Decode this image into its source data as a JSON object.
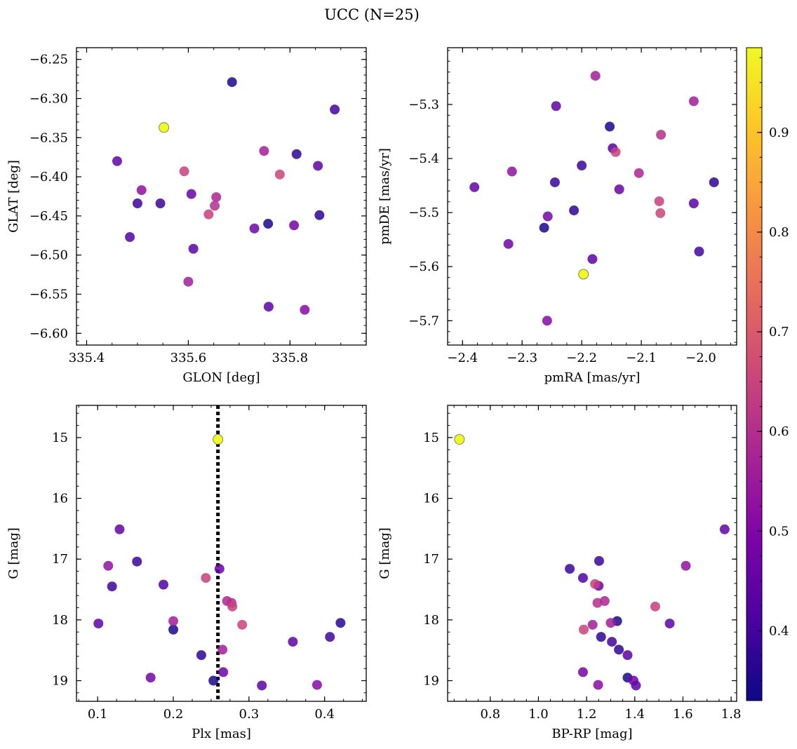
{
  "chart_data": {
    "title": "UCC (N=25)",
    "colorbar": {
      "range": [
        0.33,
        0.985
      ],
      "ticks": [
        "0.4",
        "0.5",
        "0.6",
        "0.7",
        "0.8",
        "0.9"
      ],
      "tick_values": [
        0.4,
        0.5,
        0.6,
        0.7,
        0.8,
        0.9
      ],
      "colormap": "plasma"
    },
    "panels": [
      {
        "type": "scatter",
        "xlabel": "GLON [deg]",
        "ylabel": "GLAT [deg]",
        "xlim": [
          335.38,
          335.95
        ],
        "ylim": [
          -6.615,
          -6.235
        ],
        "xticks": [
          335.4,
          335.6,
          335.8
        ],
        "xtick_labels": [
          "335.4",
          "335.6",
          "335.8"
        ],
        "yticks": [
          -6.6,
          -6.55,
          -6.5,
          -6.45,
          -6.4,
          -6.35,
          -6.3,
          -6.25
        ],
        "ytick_labels": [
          "−6.60",
          "−6.55",
          "−6.50",
          "−6.45",
          "−6.40",
          "−6.35",
          "−6.30",
          "−6.25"
        ],
        "y_inverted": false,
        "vline": null,
        "x": [
          335.552,
          335.46,
          335.508,
          335.5,
          335.545,
          335.485,
          335.592,
          335.606,
          335.655,
          335.652,
          335.64,
          335.61,
          335.6,
          335.686,
          335.749,
          335.78,
          335.813,
          335.855,
          335.888,
          335.858,
          335.808,
          335.757,
          335.73,
          335.758,
          335.829
        ],
        "y": [
          -6.337,
          -6.38,
          -6.417,
          -6.434,
          -6.434,
          -6.477,
          -6.393,
          -6.422,
          -6.426,
          -6.437,
          -6.448,
          -6.492,
          -6.534,
          -6.279,
          -6.367,
          -6.397,
          -6.371,
          -6.386,
          -6.314,
          -6.449,
          -6.462,
          -6.46,
          -6.466,
          -6.566,
          -6.57
        ]
      },
      {
        "type": "scatter",
        "xlabel": "pmRA [mas/yr]",
        "ylabel": "pmDE [mas/yr]",
        "xlim": [
          -2.425,
          -1.94
        ],
        "ylim": [
          -5.745,
          -5.195
        ],
        "xticks": [
          -2.4,
          -2.3,
          -2.2,
          -2.1,
          -2.0
        ],
        "xtick_labels": [
          "−2.4",
          "−2.3",
          "−2.2",
          "−2.1",
          "−2.0"
        ],
        "yticks": [
          -5.7,
          -5.6,
          -5.5,
          -5.4,
          -5.3
        ],
        "ytick_labels": [
          "−5.7",
          "−5.6",
          "−5.5",
          "−5.4",
          "−5.3"
        ],
        "y_inverted": false,
        "vline": null,
        "x": [
          -2.197,
          -2.38,
          -2.317,
          -2.245,
          -2.2,
          -2.148,
          -2.143,
          -2.137,
          -2.104,
          -2.067,
          -2.07,
          -2.243,
          -2.177,
          -2.153,
          -2.012,
          -2.068,
          -1.978,
          -2.012,
          -2.003,
          -2.213,
          -2.257,
          -2.263,
          -2.323,
          -2.182,
          -2.258
        ],
        "y": [
          -5.614,
          -5.453,
          -5.424,
          -5.444,
          -5.413,
          -5.381,
          -5.388,
          -5.457,
          -5.427,
          -5.356,
          -5.479,
          -5.303,
          -5.247,
          -5.341,
          -5.294,
          -5.501,
          -5.444,
          -5.483,
          -5.572,
          -5.496,
          -5.507,
          -5.528,
          -5.558,
          -5.586,
          -5.7
        ]
      },
      {
        "type": "scatter",
        "xlabel": "Plx [mas]",
        "ylabel": "G [mag]",
        "xlim": [
          0.072,
          0.455
        ],
        "ylim": [
          19.34,
          14.47
        ],
        "xticks": [
          0.1,
          0.2,
          0.3,
          0.4
        ],
        "xtick_labels": [
          "0.1",
          "0.2",
          "0.3",
          "0.4"
        ],
        "yticks": [
          15,
          16,
          17,
          18,
          19
        ],
        "ytick_labels": [
          "15",
          "16",
          "17",
          "18",
          "19"
        ],
        "y_inverted": true,
        "vline": 0.259,
        "x": [
          0.259,
          0.129,
          0.114,
          0.119,
          0.152,
          0.187,
          0.243,
          0.261,
          0.271,
          0.277,
          0.278,
          0.101,
          0.2,
          0.2,
          0.265,
          0.291,
          0.237,
          0.358,
          0.407,
          0.421,
          0.17,
          0.253,
          0.266,
          0.317,
          0.39
        ],
        "y": [
          15.03,
          16.51,
          17.11,
          17.45,
          17.04,
          17.42,
          17.31,
          17.16,
          17.69,
          17.72,
          17.78,
          18.06,
          18.02,
          18.16,
          18.49,
          18.08,
          18.58,
          18.36,
          18.28,
          18.05,
          18.95,
          19.0,
          18.86,
          19.08,
          19.07
        ]
      },
      {
        "type": "scatter",
        "xlabel": "BP-RP [mag]",
        "ylabel": "G [mag]",
        "xlim": [
          0.623,
          1.823
        ],
        "ylim": [
          19.34,
          14.47
        ],
        "xticks": [
          0.8,
          1.0,
          1.2,
          1.4,
          1.6,
          1.8
        ],
        "xtick_labels": [
          "0.8",
          "1.0",
          "1.2",
          "1.4",
          "1.6",
          "1.8"
        ],
        "yticks": [
          15,
          16,
          17,
          18,
          19
        ],
        "ytick_labels": [
          "15",
          "16",
          "17",
          "18",
          "19"
        ],
        "y_inverted": true,
        "vline": null,
        "x": [
          0.672,
          1.773,
          1.612,
          1.13,
          1.252,
          1.185,
          1.235,
          1.25,
          1.275,
          1.245,
          1.485,
          1.545,
          1.3,
          1.327,
          1.225,
          1.188,
          1.334,
          1.37,
          1.305,
          1.26,
          1.185,
          1.37,
          1.395,
          1.405,
          1.248
        ],
        "y": [
          15.03,
          16.51,
          17.11,
          17.16,
          17.03,
          17.31,
          17.41,
          17.44,
          17.69,
          17.72,
          17.78,
          18.06,
          18.05,
          18.02,
          18.08,
          18.16,
          18.49,
          18.58,
          18.36,
          18.28,
          18.86,
          18.95,
          19.0,
          19.08,
          19.07
        ]
      }
    ],
    "point_colors": [
      0.985,
      0.45,
      0.53,
      0.39,
      0.39,
      0.42,
      0.64,
      0.46,
      0.58,
      0.6,
      0.64,
      0.44,
      0.56,
      0.35,
      0.56,
      0.65,
      0.37,
      0.44,
      0.4,
      0.37,
      0.48,
      0.35,
      0.47,
      0.44,
      0.51
    ]
  }
}
